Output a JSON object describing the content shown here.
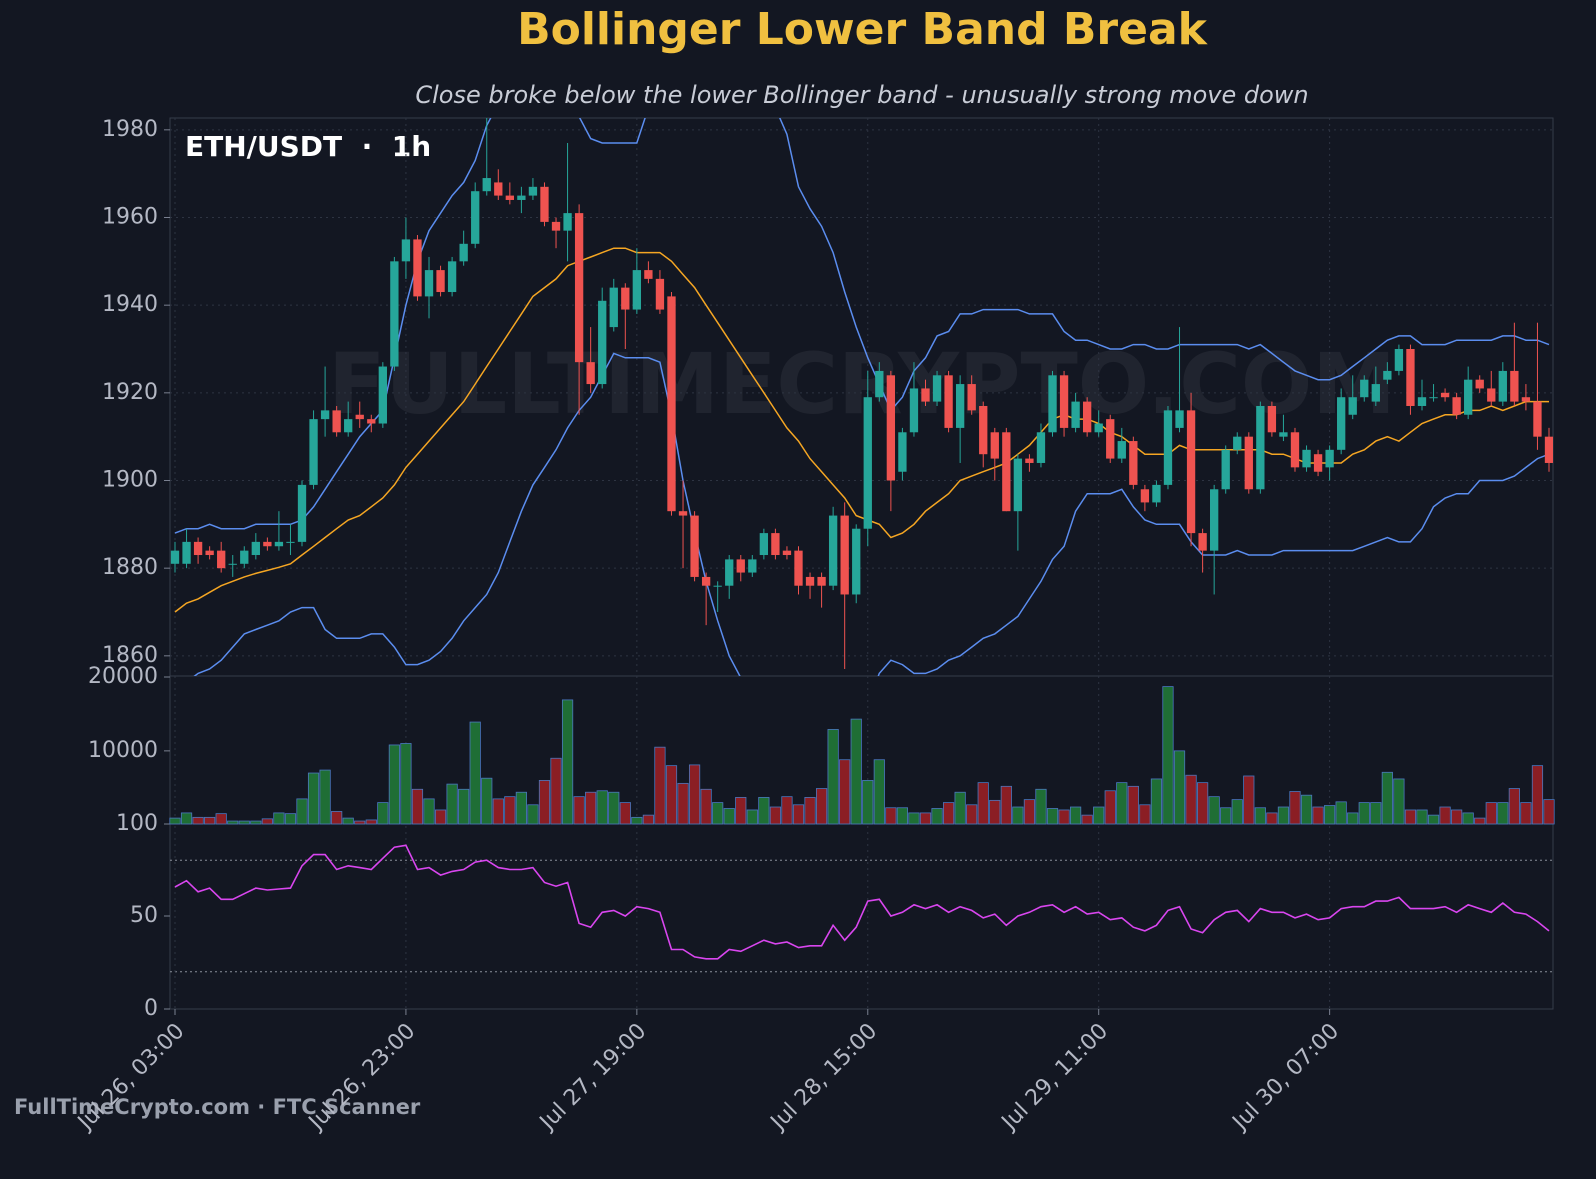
{
  "chart_data": {
    "type": "candlestick",
    "title": "Bollinger Lower Band Break",
    "subtitle": "Close broke below the lower Bollinger band - unusually strong move down",
    "annotation": "ETH/USDT  ·  1h",
    "watermark": "FULLTIMECRYPTO.COM",
    "footer": "FullTimeCrypto.com · FTC Scanner",
    "categories": [
      "Jul 26, 03:00",
      null,
      null,
      null,
      null,
      null,
      null,
      null,
      null,
      null,
      null,
      null,
      null,
      null,
      null,
      null,
      null,
      null,
      null,
      null,
      "Jul 26, 23:00",
      null,
      null,
      null,
      null,
      null,
      null,
      null,
      null,
      null,
      null,
      null,
      null,
      null,
      null,
      null,
      null,
      null,
      null,
      null,
      "Jul 27, 19:00",
      null,
      null,
      null,
      null,
      null,
      null,
      null,
      null,
      null,
      null,
      null,
      null,
      null,
      null,
      null,
      null,
      null,
      null,
      null,
      "Jul 28, 15:00",
      null,
      null,
      null,
      null,
      null,
      null,
      null,
      null,
      null,
      null,
      null,
      null,
      null,
      null,
      null,
      null,
      null,
      null,
      null,
      "Jul 29, 11:00",
      null,
      null,
      null,
      null,
      null,
      null,
      null,
      null,
      null,
      null,
      null,
      null,
      null,
      null,
      null,
      null,
      null,
      null,
      null,
      "Jul 30, 07:00",
      null,
      null,
      null,
      null,
      null,
      null,
      null,
      null,
      null,
      null,
      null,
      null,
      null,
      null,
      null,
      null,
      null,
      null,
      null
    ],
    "open": [
      1881,
      1881,
      1886,
      1884,
      1884,
      1881,
      1881,
      1883,
      1886,
      1885,
      1886,
      1886,
      1899,
      1914,
      1916,
      1911,
      1915,
      1914,
      1913,
      1926,
      1950,
      1955,
      1942,
      1948,
      1943,
      1950,
      1954,
      1966,
      1968,
      1965,
      1964,
      1965,
      1967,
      1959,
      1957,
      1961,
      1927,
      1922,
      1935,
      1944,
      1939,
      1948,
      1946,
      1942,
      1893,
      1892,
      1878,
      1876,
      1876,
      1882,
      1879,
      1883,
      1888,
      1884,
      1884,
      1878,
      1878,
      1876,
      1892,
      1874,
      1889,
      1919,
      1924,
      1902,
      1911,
      1921,
      1918,
      1924,
      1912,
      1922,
      1917,
      1911,
      1911,
      1893,
      1905,
      1904,
      1911,
      1924,
      1912,
      1918,
      1911,
      1914,
      1905,
      1909,
      1898,
      1895,
      1899,
      1912,
      1916,
      1888,
      1884,
      1898,
      1907,
      1910,
      1898,
      1917,
      1910,
      1911,
      1903,
      1906,
      1903,
      1907,
      1915,
      1919,
      1918,
      1923,
      1925,
      1930,
      1917,
      1919,
      1920,
      1919,
      1915,
      1923,
      1921,
      1918,
      1925,
      1919,
      1918,
      1910
    ],
    "high": [
      1886,
      1889,
      1887,
      1885,
      1886,
      1883,
      1885,
      1888,
      1887,
      1893,
      1890,
      1900,
      1916,
      1926,
      1917,
      1918,
      1918,
      1915,
      1927,
      1951,
      1960,
      1956,
      1951,
      1949,
      1951,
      1957,
      1968,
      1983,
      1971,
      1968,
      1967,
      1969,
      1968,
      1960,
      1977,
      1963,
      1935,
      1944,
      1946,
      1945,
      1953,
      1950,
      1948,
      1943,
      1900,
      1893,
      1879,
      1877,
      1883,
      1883,
      1883,
      1889,
      1889,
      1885,
      1885,
      1879,
      1879,
      1894,
      1895,
      1890,
      1925,
      1927,
      1925,
      1912,
      1927,
      1923,
      1925,
      1925,
      1924,
      1924,
      1918,
      1912,
      1912,
      1906,
      1906,
      1913,
      1925,
      1925,
      1920,
      1919,
      1916,
      1915,
      1912,
      1910,
      1899,
      1900,
      1917,
      1935,
      1920,
      1889,
      1899,
      1908,
      1911,
      1911,
      1918,
      1918,
      1915,
      1912,
      1908,
      1907,
      1908,
      1921,
      1924,
      1924,
      1926,
      1927,
      1931,
      1931,
      1923,
      1922,
      1921,
      1920,
      1926,
      1924,
      1925,
      1927,
      1936,
      1922,
      1936,
      1912
    ],
    "low": [
      1879,
      1880,
      1881,
      1882,
      1879,
      1878,
      1880,
      1882,
      1884,
      1884,
      1883,
      1885,
      1898,
      1910,
      1910,
      1910,
      1912,
      1911,
      1912,
      1925,
      1946,
      1941,
      1937,
      1942,
      1942,
      1949,
      1953,
      1965,
      1964,
      1963,
      1961,
      1964,
      1958,
      1953,
      1950,
      1915,
      1920,
      1921,
      1934,
      1930,
      1938,
      1945,
      1938,
      1892,
      1880,
      1877,
      1867,
      1870,
      1873,
      1877,
      1878,
      1882,
      1882,
      1882,
      1874,
      1873,
      1871,
      1875,
      1857,
      1872,
      1885,
      1918,
      1893,
      1900,
      1910,
      1917,
      1917,
      1911,
      1904,
      1915,
      1903,
      1900,
      1893,
      1884,
      1902,
      1903,
      1910,
      1910,
      1911,
      1910,
      1910,
      1904,
      1904,
      1898,
      1893,
      1894,
      1898,
      1911,
      1885,
      1879,
      1874,
      1897,
      1906,
      1897,
      1897,
      1910,
      1909,
      1902,
      1902,
      1901,
      1900,
      1906,
      1914,
      1918,
      1917,
      1922,
      1924,
      1915,
      1916,
      1918,
      1918,
      1914,
      1914,
      1920,
      1917,
      1917,
      1917,
      1916,
      1907,
      1902
    ],
    "close": [
      1884,
      1886,
      1883,
      1883,
      1880,
      1881,
      1884,
      1886,
      1885,
      1886,
      1886,
      1899,
      1914,
      1916,
      1911,
      1914,
      1914,
      1913,
      1926,
      1950,
      1955,
      1942,
      1948,
      1943,
      1950,
      1954,
      1966,
      1969,
      1965,
      1964,
      1965,
      1967,
      1959,
      1957,
      1961,
      1927,
      1922,
      1941,
      1944,
      1939,
      1948,
      1946,
      1939,
      1893,
      1892,
      1878,
      1876,
      1876,
      1882,
      1879,
      1882,
      1888,
      1883,
      1883,
      1876,
      1876,
      1876,
      1892,
      1874,
      1889,
      1919,
      1925,
      1900,
      1911,
      1921,
      1918,
      1924,
      1912,
      1922,
      1916,
      1906,
      1905,
      1893,
      1905,
      1904,
      1911,
      1924,
      1912,
      1918,
      1911,
      1913,
      1905,
      1909,
      1899,
      1895,
      1899,
      1916,
      1916,
      1888,
      1884,
      1898,
      1907,
      1910,
      1898,
      1917,
      1911,
      1911,
      1903,
      1907,
      1902,
      1907,
      1919,
      1919,
      1923,
      1922,
      1925,
      1930,
      1917,
      1919,
      1919,
      1919,
      1915,
      1923,
      1921,
      1918,
      1925,
      1918,
      1918,
      1910,
      1904
    ],
    "up_color": "#26a69a",
    "down_color": "#ef5350",
    "ylim": [
      1855.4,
      1982.7
    ],
    "yticks": [
      1860,
      1880,
      1900,
      1920,
      1940,
      1960,
      1980
    ],
    "grid": true,
    "overlays": [
      {
        "color": "#5b8def",
        "values": [
          1888,
          1889,
          1889,
          1890,
          1889,
          1889,
          1889,
          1890,
          1890,
          1890,
          1890,
          1891,
          1894,
          1898,
          1902,
          1906,
          1910,
          1913,
          1916,
          1928,
          1940,
          1950,
          1957,
          1961,
          1965,
          1968,
          1973,
          1981,
          1986,
          1990,
          1993,
          1995,
          1994,
          1991,
          1988,
          1983,
          1978,
          1977,
          1977,
          1977,
          1977,
          1985,
          1995,
          2000,
          2005,
          2005,
          2003,
          2002,
          2000,
          1997,
          1993,
          1989,
          1985,
          1979,
          1967,
          1962,
          1958,
          1952,
          1943,
          1935,
          1928,
          1922,
          1916,
          1919,
          1925,
          1928,
          1933,
          1934,
          1938,
          1938,
          1939,
          1939,
          1939,
          1939,
          1938,
          1938,
          1938,
          1934,
          1932,
          1932,
          1931,
          1930,
          1930,
          1931,
          1931,
          1930,
          1930,
          1931,
          1931,
          1931,
          1931,
          1931,
          1931,
          1930,
          1931,
          1929,
          1927,
          1925,
          1924,
          1923,
          1923,
          1924,
          1926,
          1928,
          1930,
          1932,
          1933,
          1933,
          1931,
          1931,
          1931,
          1932,
          1932,
          1932,
          1932,
          1933,
          1933,
          1932,
          1932,
          1931
        ]
      },
      {
        "color": "#f5a623",
        "values": [
          1870,
          1872,
          1873,
          1874.5,
          1876,
          1877,
          1878,
          1878.8,
          1879.5,
          1880.2,
          1881,
          1883,
          1885,
          1887,
          1889,
          1891,
          1892,
          1894,
          1896,
          1899,
          1903,
          1906,
          1909,
          1912,
          1915,
          1918,
          1922,
          1926,
          1930,
          1934,
          1938,
          1942,
          1944,
          1946,
          1949,
          1950,
          1951,
          1952,
          1953,
          1953,
          1952,
          1952,
          1952,
          1950,
          1947,
          1944,
          1940,
          1936,
          1932,
          1928,
          1924,
          1920,
          1916,
          1912,
          1909,
          1905,
          1902,
          1899,
          1896,
          1892,
          1891,
          1890,
          1887,
          1888,
          1890,
          1893,
          1895,
          1897,
          1900,
          1901,
          1902,
          1903,
          1904,
          1906,
          1908,
          1911,
          1914,
          1915,
          1914,
          1914,
          1913,
          1911,
          1910,
          1908,
          1906,
          1906,
          1906,
          1908,
          1907,
          1907,
          1907,
          1907,
          1907,
          1907,
          1907,
          1906,
          1906,
          1905,
          1904,
          1904,
          1904,
          1904,
          1906,
          1907,
          1909,
          1910,
          1909,
          1911,
          1913,
          1914,
          1915,
          1915,
          1916,
          1916,
          1917,
          1916,
          1917,
          1918,
          1918,
          1918
        ]
      },
      {
        "color": "#5b8def",
        "values": [
          1853,
          1854,
          1856,
          1857,
          1859,
          1862,
          1865,
          1866,
          1867,
          1868,
          1870,
          1871,
          1871,
          1866,
          1864,
          1864,
          1864,
          1865,
          1865,
          1862,
          1858,
          1858,
          1859,
          1861,
          1864,
          1868,
          1871,
          1874,
          1879,
          1886,
          1893,
          1899,
          1903,
          1907,
          1912,
          1916,
          1919,
          1924,
          1929,
          1928,
          1928,
          1928,
          1927,
          1915,
          1900,
          1888,
          1877,
          1868,
          1860,
          1855,
          1850,
          1845,
          1840,
          1836,
          1832,
          1830,
          1829,
          1831,
          1835,
          1842,
          1849,
          1856,
          1859,
          1858,
          1856,
          1856,
          1857,
          1859,
          1860,
          1862,
          1864,
          1865,
          1867,
          1869,
          1873,
          1877,
          1882,
          1885,
          1893,
          1897,
          1897,
          1897,
          1898,
          1894,
          1891,
          1890,
          1890,
          1890,
          1886,
          1883,
          1883,
          1883,
          1884,
          1883,
          1883,
          1883,
          1884,
          1884,
          1884,
          1884,
          1884,
          1884,
          1884,
          1885,
          1886,
          1887,
          1886,
          1886,
          1889,
          1894,
          1896,
          1897,
          1897,
          1900,
          1900,
          1900,
          1901,
          1903,
          1905,
          1906
        ]
      }
    ],
    "volume": {
      "values": [
        900,
        1600,
        1000,
        1000,
        1500,
        500,
        500,
        500,
        800,
        1600,
        1500,
        3500,
        7000,
        7400,
        1800,
        900,
        500,
        650,
        3000,
        10800,
        11000,
        4800,
        3500,
        2000,
        5500,
        4800,
        13900,
        6300,
        3500,
        3800,
        4400,
        2700,
        6000,
        9000,
        16900,
        3800,
        4400,
        4600,
        4400,
        3000,
        1000,
        1300,
        10500,
        8000,
        5600,
        8100,
        4800,
        3000,
        2200,
        3700,
        2000,
        3700,
        2400,
        3800,
        2700,
        3700,
        4900,
        12900,
        8800,
        14300,
        6000,
        8800,
        2300,
        2300,
        1600,
        1600,
        2200,
        3000,
        4400,
        2700,
        5700,
        3300,
        5200,
        2400,
        3400,
        4800,
        2200,
        2000,
        2400,
        1300,
        2400,
        4600,
        5700,
        5200,
        2700,
        6200,
        18700,
        10000,
        6700,
        5700,
        3800,
        2300,
        3400,
        6600,
        2300,
        1600,
        2400,
        4500,
        4000,
        2400,
        2600,
        3100,
        1600,
        3000,
        3000,
        7100,
        6200,
        2000,
        2000,
        1300,
        2400,
        2000,
        1600,
        900,
        3000,
        3000,
        4900,
        3000,
        8000,
        3400
      ],
      "up_color": "#1f6e35",
      "down_color": "#8b1e24",
      "edge_color": "#4a78c0",
      "ylim": [
        100,
        20000
      ],
      "yticks": [
        100,
        10000,
        20000
      ]
    },
    "rsi": {
      "values": [
        65.6,
        69,
        63,
        65,
        59,
        59,
        62,
        65,
        64,
        64.5,
        65,
        77,
        83,
        83,
        75,
        77,
        76,
        75,
        81,
        87,
        88,
        75,
        76,
        72,
        74,
        75,
        79,
        80,
        76,
        75,
        75,
        76,
        68,
        66,
        68,
        46,
        44,
        52,
        53,
        50,
        55,
        54,
        52,
        32,
        32,
        28,
        27,
        27,
        32,
        31,
        34,
        37,
        35,
        36,
        33,
        34,
        34,
        45,
        37,
        44,
        58,
        59,
        50,
        52,
        56,
        54,
        56,
        52,
        55,
        53,
        49,
        51,
        45,
        50,
        52,
        55,
        56,
        52,
        55,
        51,
        52,
        48,
        49,
        44,
        42,
        45,
        53,
        55,
        43,
        41,
        48,
        52,
        53,
        47,
        54,
        52,
        52,
        49,
        51,
        48,
        49,
        54,
        55,
        55,
        58,
        58,
        60,
        54,
        54,
        54,
        55,
        52,
        56,
        54,
        52,
        57,
        52,
        51,
        47,
        42
      ],
      "color": "#d946ef",
      "ylim": [
        0,
        100
      ],
      "yticks": [
        0,
        50
      ],
      "levels": [
        20,
        80
      ]
    }
  }
}
